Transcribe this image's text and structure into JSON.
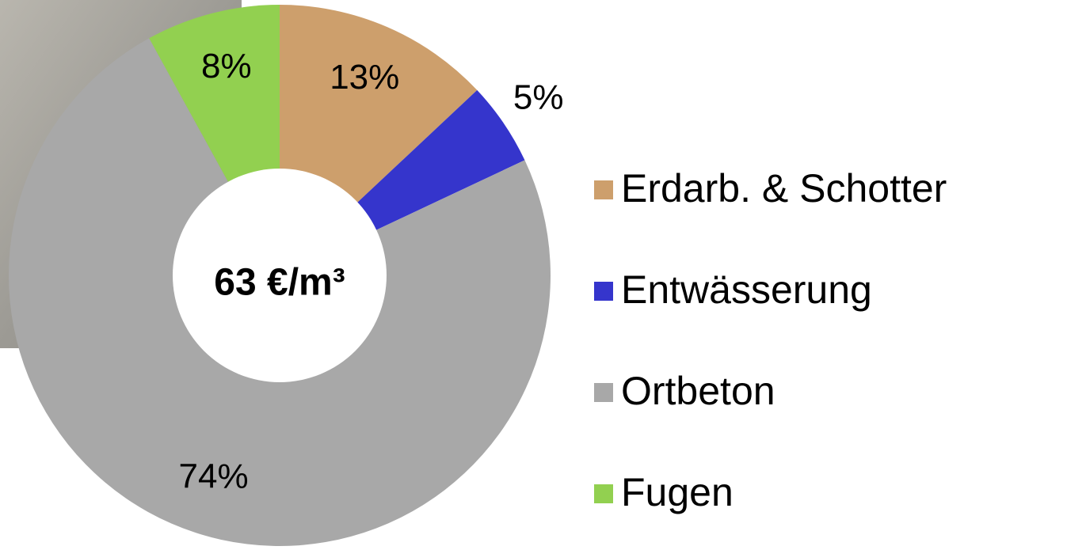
{
  "chart_data": {
    "type": "pie",
    "categories": [
      "Erdarb. & Schotter",
      "Entwässerung",
      "Ortbeton",
      "Fugen"
    ],
    "values": [
      13,
      5,
      74,
      8
    ],
    "value_labels": [
      "13%",
      "5%",
      "74%",
      "8%"
    ],
    "colors": [
      "#cd9f6c",
      "#3535cc",
      "#a8a8a8",
      "#92d050"
    ],
    "center_label": "63 €/m³",
    "legend": "right"
  }
}
